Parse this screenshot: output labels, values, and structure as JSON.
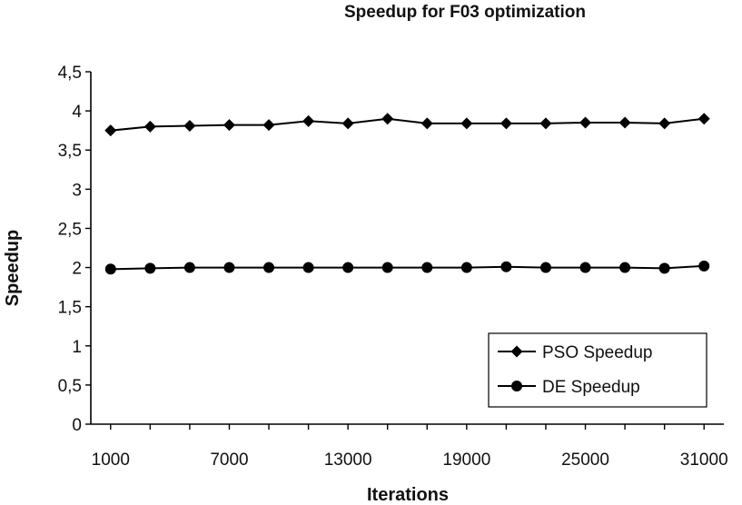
{
  "chart_data": {
    "type": "line",
    "title": "Speedup for F03 optimization",
    "xlabel": "Iterations",
    "ylabel": "Speedup",
    "x": [
      1000,
      3000,
      5000,
      7000,
      9000,
      11000,
      13000,
      15000,
      17000,
      19000,
      21000,
      23000,
      25000,
      27000,
      29000,
      31000
    ],
    "xticks": [
      1000,
      7000,
      13000,
      19000,
      25000,
      31000
    ],
    "xtick_labels": [
      "1000",
      "7000",
      "13000",
      "19000",
      "25000",
      "31000"
    ],
    "ylim": [
      0,
      4.5
    ],
    "yticks": [
      0,
      0.5,
      1,
      1.5,
      2,
      2.5,
      3,
      3.5,
      4,
      4.5
    ],
    "ytick_labels": [
      "0",
      "0,5",
      "1",
      "1,5",
      "2",
      "2,5",
      "3",
      "3,5",
      "4",
      "4,5"
    ],
    "grid": false,
    "legend_position": "bottom-right",
    "series": [
      {
        "name": "PSO Speedup",
        "marker": "diamond",
        "values": [
          3.75,
          3.8,
          3.81,
          3.82,
          3.82,
          3.87,
          3.84,
          3.9,
          3.84,
          3.84,
          3.84,
          3.84,
          3.85,
          3.85,
          3.84,
          3.9
        ]
      },
      {
        "name": "DE Speedup",
        "marker": "circle",
        "values": [
          1.98,
          1.99,
          2.0,
          2.0,
          2.0,
          2.0,
          2.0,
          2.0,
          2.0,
          2.0,
          2.01,
          2.0,
          2.0,
          2.0,
          1.99,
          2.02
        ]
      }
    ],
    "colors": {
      "line": "#000000",
      "axis": "#000000",
      "background": "#ffffff"
    }
  }
}
